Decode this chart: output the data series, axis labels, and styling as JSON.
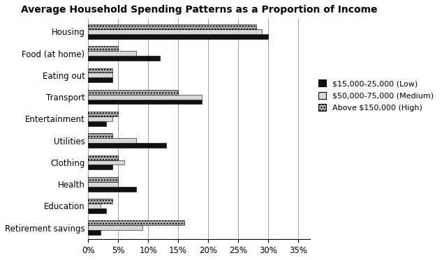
{
  "title": "Average Household Spending Patterns as a Proportion of Income",
  "categories": [
    "Housing",
    "Food (at home)",
    "Eating out",
    "Transport",
    "Entertainment",
    "Utilities",
    "Clothing",
    "Health",
    "Education",
    "Retirement savings"
  ],
  "series": {
    "low": [
      0.3,
      0.12,
      0.04,
      0.19,
      0.03,
      0.13,
      0.04,
      0.08,
      0.03,
      0.02
    ],
    "medium": [
      0.29,
      0.08,
      0.04,
      0.19,
      0.04,
      0.08,
      0.06,
      0.05,
      0.02,
      0.09
    ],
    "high": [
      0.28,
      0.05,
      0.04,
      0.15,
      0.05,
      0.04,
      0.05,
      0.05,
      0.04,
      0.16
    ]
  },
  "legend_labels": [
    "$15,000-25,000 (Low)",
    "$50,000-75,000 (Medium)",
    "Above $150,000 (High)"
  ],
  "bar_colors": [
    "#111111",
    "#d8d8d8",
    "#b0b0b0"
  ],
  "bar_hatches": [
    "",
    "",
    "...."
  ],
  "xlim": [
    0,
    0.37
  ],
  "xticks": [
    0.0,
    0.05,
    0.1,
    0.15,
    0.2,
    0.25,
    0.3,
    0.35
  ],
  "xticklabels": [
    "0%",
    "5%",
    "10%",
    "15%",
    "20%",
    "25%",
    "30%",
    "35%"
  ],
  "bar_height": 0.22,
  "figsize": [
    6.33,
    3.73
  ],
  "dpi": 100,
  "title_fontsize": 10,
  "tick_fontsize": 8.5,
  "legend_fontsize": 8
}
